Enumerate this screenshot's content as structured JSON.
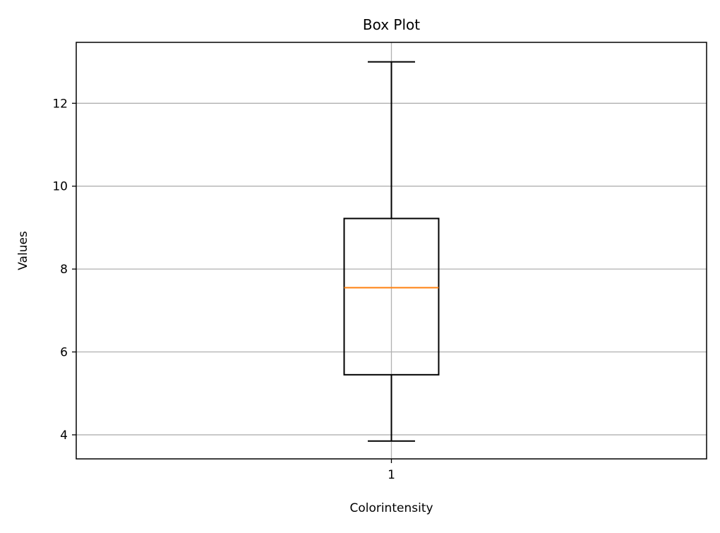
{
  "chart_data": {
    "type": "box",
    "title": "Box Plot",
    "xlabel": "Colorintensity",
    "ylabel": "Values",
    "categories": [
      "1"
    ],
    "ylim": [
      3.42,
      13.47
    ],
    "yticks": [
      4,
      6,
      8,
      10,
      12
    ],
    "ytick_labels": [
      "4",
      "6",
      "8",
      "10",
      "12"
    ],
    "grid": true,
    "boxes": [
      {
        "category": "1",
        "whisker_low": 3.85,
        "q1": 5.45,
        "median": 7.55,
        "q3": 9.22,
        "whisker_high": 13.0
      }
    ],
    "colors": {
      "box": "#000000",
      "median": "#ff7f0e",
      "grid": "#b0b0b0"
    }
  }
}
